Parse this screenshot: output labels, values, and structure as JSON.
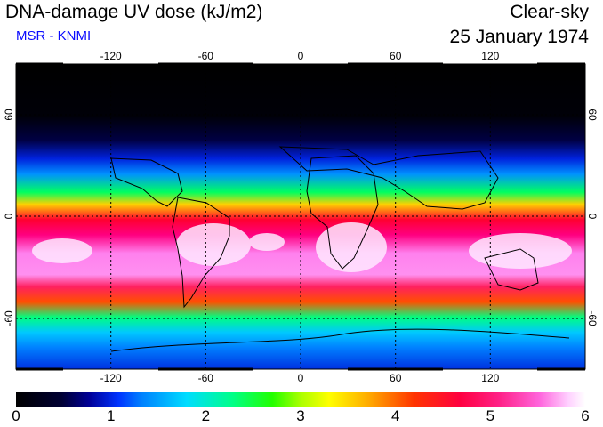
{
  "header": {
    "title": "DNA-damage UV dose (kJ/m2)",
    "subtitle": "MSR - KNMI",
    "sky": "Clear-sky",
    "date": "25 January 1974"
  },
  "map": {
    "lon_ticks": [
      "-120",
      "-60",
      "0",
      "60",
      "120"
    ],
    "lat_ticks": [
      "60",
      "0",
      "-60"
    ],
    "lon_range": [
      -180,
      180
    ],
    "lat_range": [
      -90,
      90
    ],
    "colors": {
      "land_outline": "#000000",
      "grid": "#000000"
    }
  },
  "colorbar": {
    "labels": [
      "0",
      "1",
      "2",
      "3",
      "4",
      "5",
      "6"
    ],
    "range": [
      0,
      6
    ]
  }
}
